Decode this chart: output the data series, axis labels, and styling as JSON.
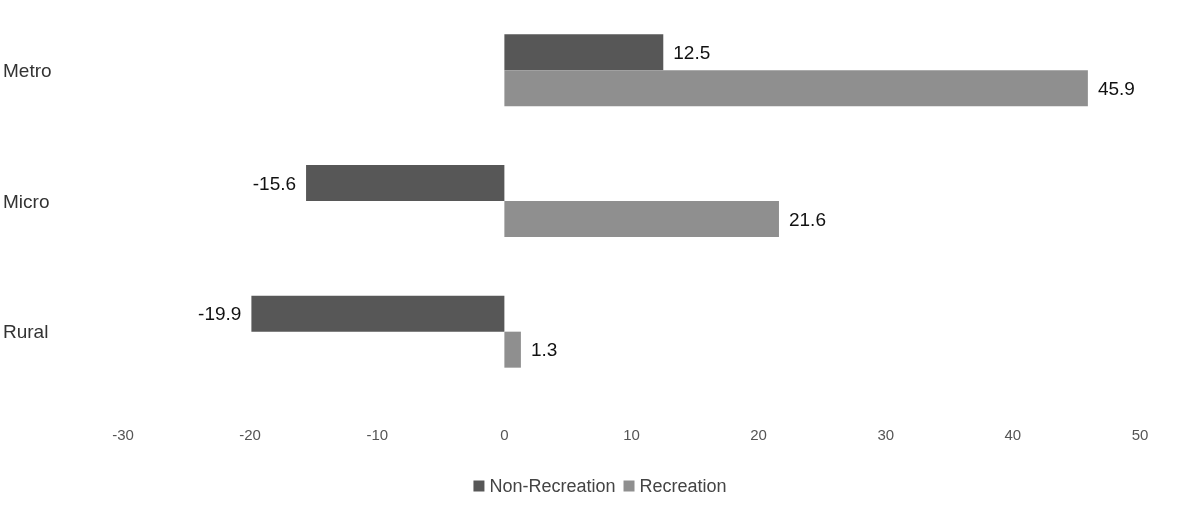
{
  "chart_data": {
    "type": "bar",
    "orientation": "horizontal",
    "categories": [
      "Metro",
      "Micro",
      "Rural"
    ],
    "series": [
      {
        "name": "Non-Recreation",
        "color": "#575757",
        "values": [
          12.5,
          -15.6,
          -19.9
        ]
      },
      {
        "name": "Recreation",
        "color": "#8f8f8f",
        "values": [
          45.9,
          21.6,
          1.3
        ]
      }
    ],
    "xlim": [
      -30,
      50
    ],
    "xticks": [
      -30,
      -20,
      -10,
      0,
      10,
      20,
      30,
      40,
      50
    ],
    "data_labels": true,
    "grid": false,
    "legend": "bottom"
  }
}
